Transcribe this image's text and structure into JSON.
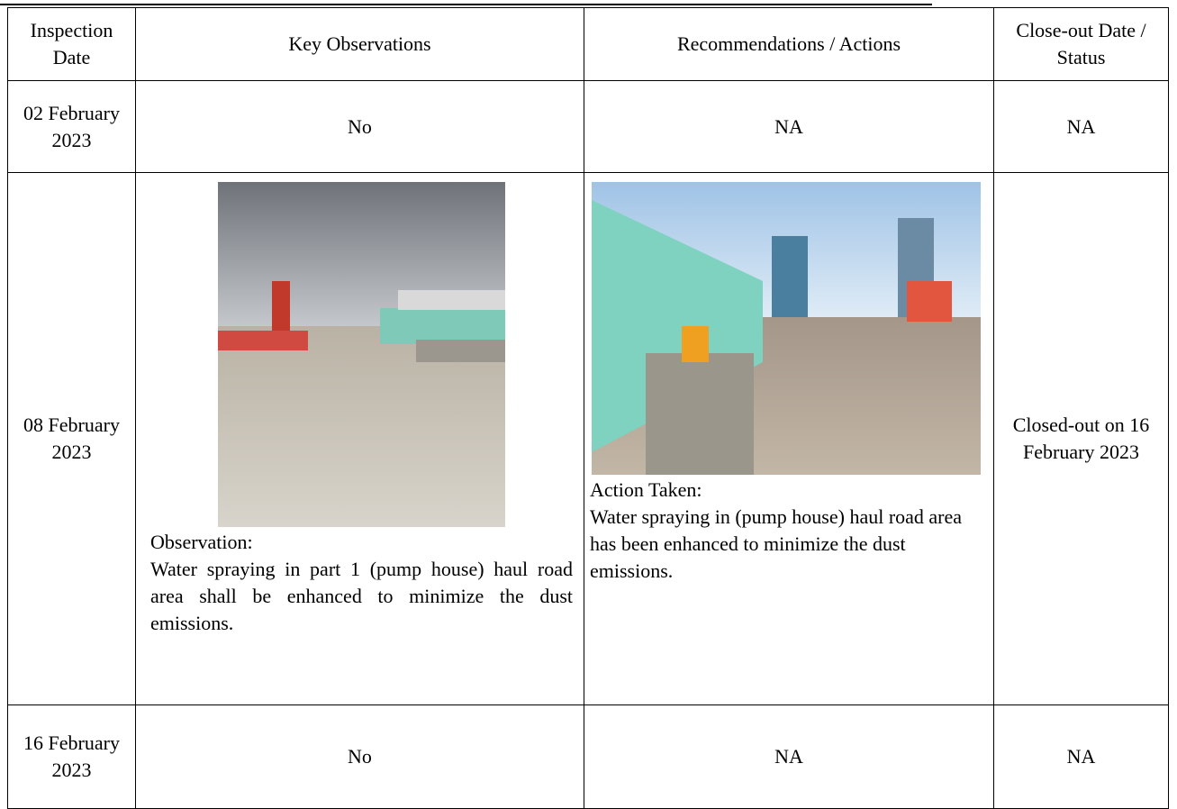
{
  "table": {
    "header": [
      "Inspection Date",
      "Key Observations",
      "Recommendations / Actions",
      "Close-out Date / Status"
    ],
    "rows": [
      [
        "02 February 2023",
        "No",
        "NA",
        "NA"
      ],
      [
        "08 February 2023",
        {
          "label": "Observation:",
          "text": "Water spraying in part 1 (pump house) haul road area shall be enhanced to minimize the dust emissions."
        },
        {
          "label": "Action Taken:",
          "text": "Water spraying in (pump house) haul road area has been enhanced to minimize the dust emissions."
        },
        "Closed-out on 16 February 2023"
      ],
      [
        "16 February 2023",
        "No",
        "NA",
        "NA"
      ]
    ]
  }
}
